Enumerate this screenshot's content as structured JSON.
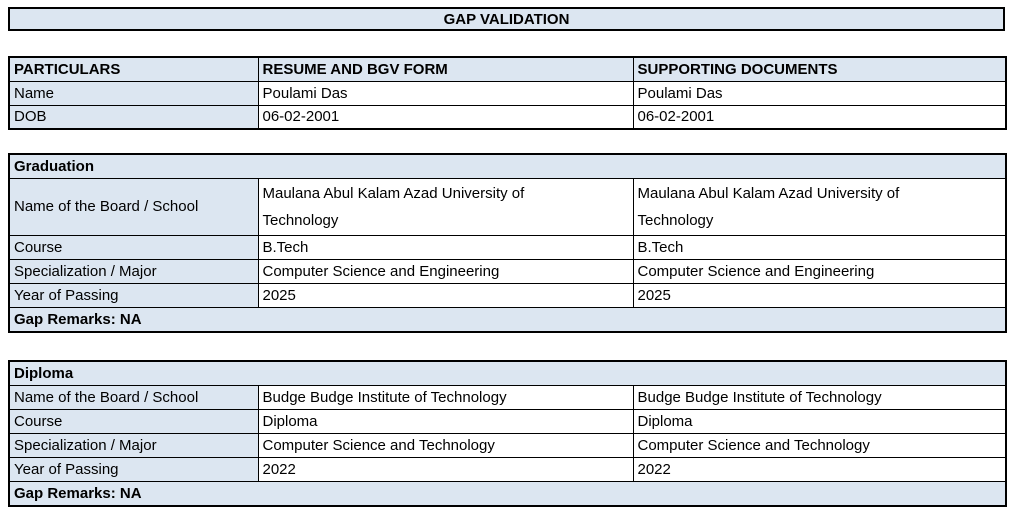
{
  "title": "GAP VALIDATION",
  "colors": {
    "fill": "#dce6f1",
    "border": "#000000",
    "text": "#000000",
    "background": "#ffffff"
  },
  "particulars": {
    "headers": [
      "PARTICULARS",
      "RESUME AND BGV FORM",
      "SUPPORTING DOCUMENTS"
    ],
    "rows": [
      {
        "label": "Name",
        "resume": "Poulami Das",
        "supporting": "Poulami Das"
      },
      {
        "label": "DOB",
        "resume": "06-02-2001",
        "supporting": "06-02-2001"
      }
    ]
  },
  "sections": [
    {
      "title": "Graduation",
      "rows": [
        {
          "label": "Name of the Board / School",
          "resume": "Maulana Abul Kalam Azad University of Technology",
          "supporting": "Maulana Abul Kalam Azad University of Technology"
        },
        {
          "label": "Course",
          "resume": "B.Tech",
          "supporting": "B.Tech"
        },
        {
          "label": "Specialization / Major",
          "resume": "Computer Science and Engineering",
          "supporting": "Computer Science and Engineering"
        },
        {
          "label": "Year of Passing",
          "resume": "2025",
          "supporting": "2025"
        }
      ],
      "gap_remarks": "Gap Remarks: NA"
    },
    {
      "title": "Diploma",
      "rows": [
        {
          "label": "Name of the Board / School",
          "resume": "Budge Budge Institute of Technology",
          "supporting": "Budge Budge Institute of Technology"
        },
        {
          "label": "Course",
          "resume": "Diploma",
          "supporting": "Diploma"
        },
        {
          "label": "Specialization / Major",
          "resume": "Computer Science and Technology",
          "supporting": "Computer Science and Technology"
        },
        {
          "label": "Year of Passing",
          "resume": "2022",
          "supporting": "2022"
        }
      ],
      "gap_remarks": "Gap Remarks: NA"
    }
  ]
}
